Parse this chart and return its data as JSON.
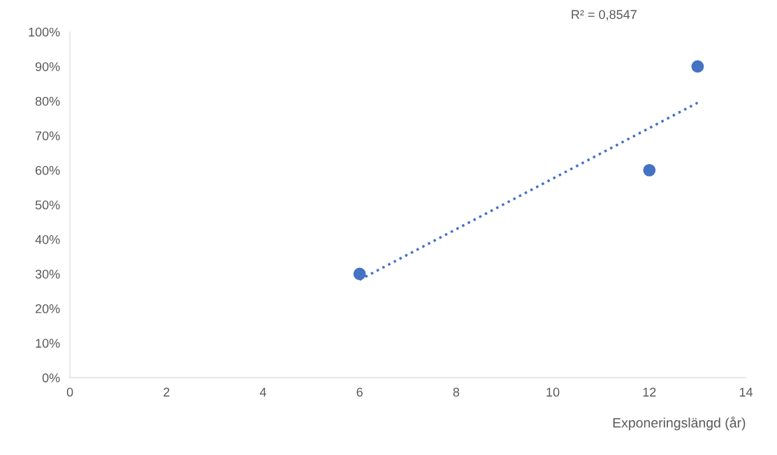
{
  "chart_data": {
    "type": "scatter",
    "xlabel": "Exponeringslängd (år)",
    "marker": "circle",
    "grid": false,
    "legend": false,
    "xlim": [
      0,
      14
    ],
    "xticks": [
      0,
      2,
      4,
      6,
      8,
      10,
      12,
      14
    ],
    "ylim": [
      0,
      100
    ],
    "yticks": [
      {
        "value": 0,
        "label": "0%"
      },
      {
        "value": 10,
        "label": "10%"
      },
      {
        "value": 20,
        "label": "20%"
      },
      {
        "value": 30,
        "label": "30%"
      },
      {
        "value": 40,
        "label": "40%"
      },
      {
        "value": 50,
        "label": "50%"
      },
      {
        "value": 60,
        "label": "60%"
      },
      {
        "value": 70,
        "label": "70%"
      },
      {
        "value": 80,
        "label": "80%"
      },
      {
        "value": 90,
        "label": "90%"
      },
      {
        "value": 100,
        "label": "100%"
      }
    ],
    "series": [
      {
        "color": "#4472c4",
        "x": [
          6,
          12,
          13
        ],
        "values": [
          30,
          60,
          90
        ]
      },
      {
        "type": "line",
        "color": "#4472c4",
        "line_style": "dotted",
        "marker": "none",
        "x": [
          6,
          13
        ],
        "values": [
          28.3,
          79.5
        ]
      }
    ],
    "annotations": [
      "R² = 0,8547"
    ]
  }
}
